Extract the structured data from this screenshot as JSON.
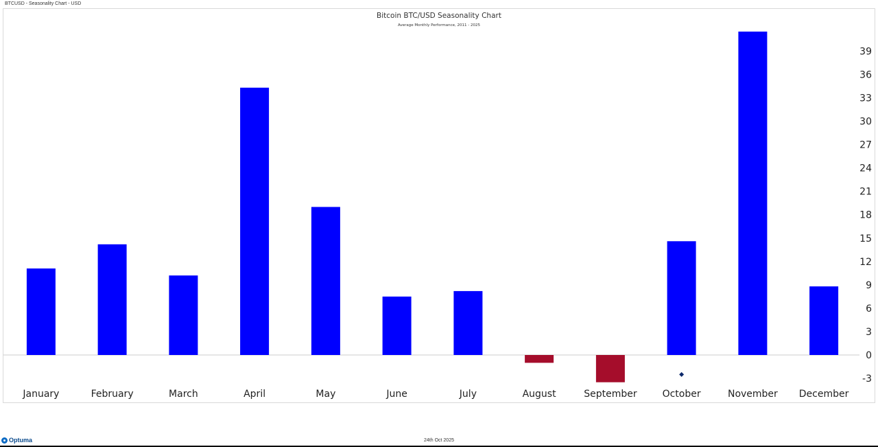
{
  "window": {
    "title": "BTCUSD - Seasonality Chart - USD"
  },
  "footer": {
    "date": "24th Oct 2025",
    "logo_text": "Optuma"
  },
  "colors": {
    "positive": "#0000ff",
    "negative": "#a50d2b",
    "marker": "#0d2a6b",
    "zero_line": "#cccccc"
  },
  "chart_data": {
    "type": "bar",
    "title": "Bitcoin BTC/USD Seasonality Chart",
    "subtitle": "Average Monthly Performance, 2011 - 2025",
    "xlabel": "",
    "ylabel": "",
    "categories": [
      "January",
      "February",
      "March",
      "April",
      "May",
      "June",
      "July",
      "August",
      "September",
      "October",
      "November",
      "December"
    ],
    "values": [
      11.1,
      14.2,
      10.2,
      34.3,
      19.0,
      7.5,
      8.2,
      -1.0,
      -3.5,
      14.6,
      41.5,
      8.8
    ],
    "markers": [
      {
        "category": "October",
        "value": -2.5
      }
    ],
    "yticks": [
      -3,
      0,
      3,
      6,
      9,
      12,
      15,
      18,
      21,
      24,
      27,
      30,
      33,
      36,
      39
    ],
    "ylim": [
      -4.6,
      43.9
    ],
    "grid": false,
    "legend": "none",
    "y_axis_side": "right"
  }
}
